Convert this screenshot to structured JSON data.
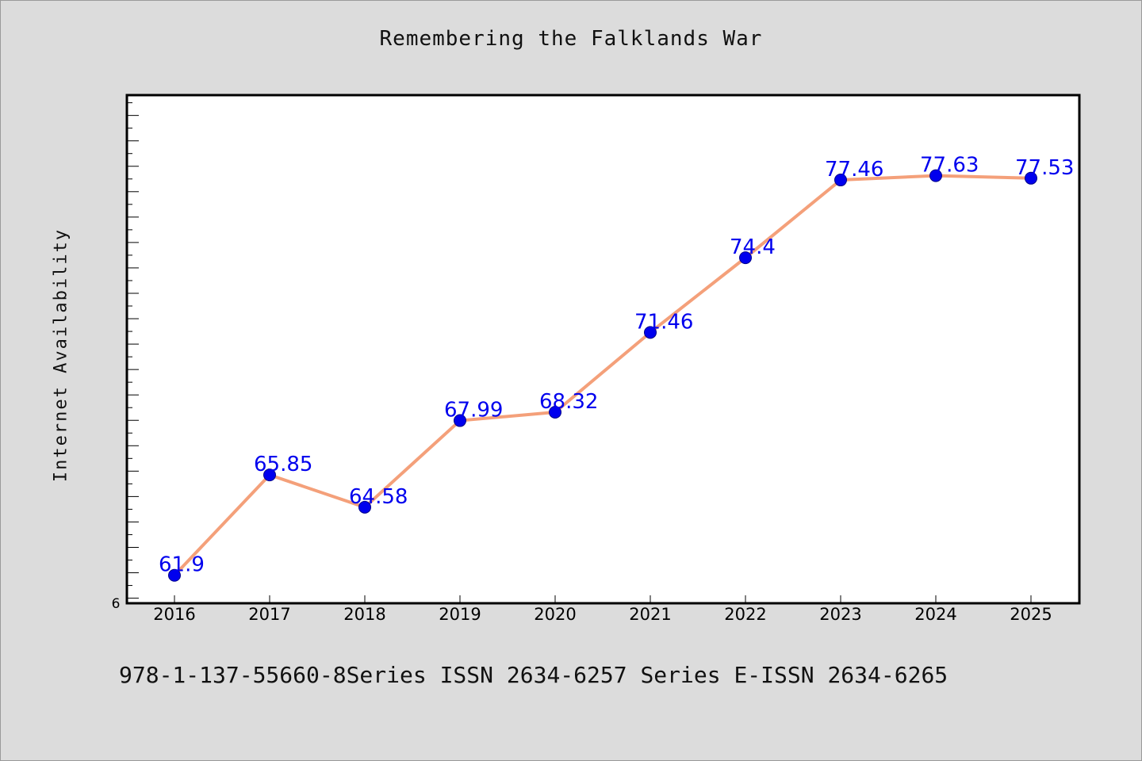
{
  "chart_data": {
    "type": "line",
    "title": "Remembering the Falklands War",
    "xlabel": "",
    "ylabel": "Internet Availability",
    "x": [
      "2016",
      "2017",
      "2018",
      "2019",
      "2020",
      "2021",
      "2022",
      "2023",
      "2024",
      "2025"
    ],
    "series": [
      {
        "values": [
          61.9,
          65.85,
          64.58,
          67.99,
          68.32,
          71.46,
          74.4,
          77.46,
          77.63,
          77.53
        ],
        "labels": [
          "61.9",
          "65.85",
          "64.58",
          "67.99",
          "68.32",
          "71.46",
          "74.4",
          "77.46",
          "77.63",
          "77.53"
        ],
        "line_color": "#f4a07a",
        "marker_color": "#0000ee",
        "label_color": "#0000ee"
      }
    ],
    "ylim": [
      60.8,
      80.8
    ],
    "y_tick_label": "6",
    "grid": false,
    "legend": "none"
  },
  "footer": {
    "text": "978-1-137-55660-8Series ISSN 2634-6257 Series E-ISSN 2634-6265"
  }
}
